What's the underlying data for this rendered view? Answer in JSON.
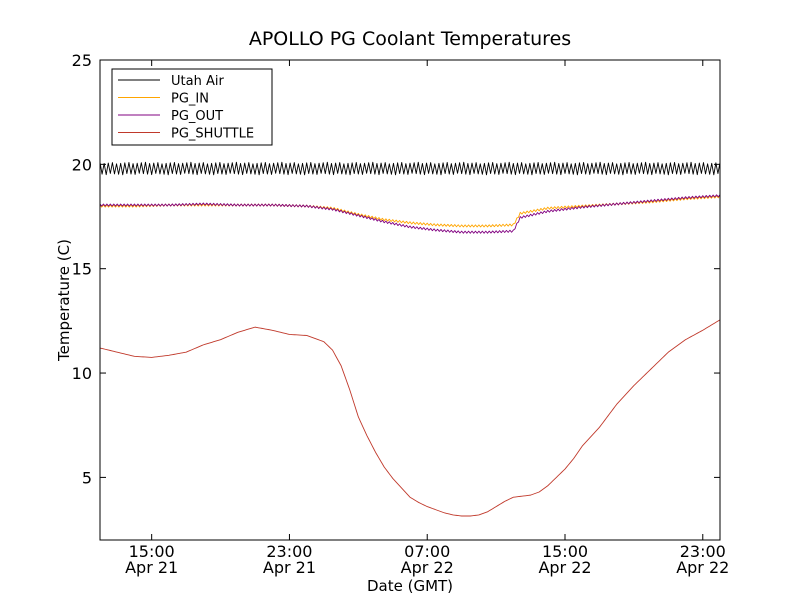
{
  "chart_data": {
    "type": "line",
    "title": "APOLLO PG Coolant Temperatures",
    "xlabel": "Date (GMT)",
    "ylabel": "Temperature (C)",
    "xlim": [
      12.0,
      48.0
    ],
    "ylim": [
      2,
      25
    ],
    "x_unit": "hours since 2014-04-21 00:00 GMT",
    "x_ticks": [
      {
        "x": 15,
        "line1": "15:00",
        "line2": "Apr 21"
      },
      {
        "x": 23,
        "line1": "23:00",
        "line2": "Apr 21"
      },
      {
        "x": 31,
        "line1": "07:00",
        "line2": "Apr 22"
      },
      {
        "x": 39,
        "line1": "15:00",
        "line2": "Apr 22"
      },
      {
        "x": 47,
        "line1": "23:00",
        "line2": "Apr 22"
      }
    ],
    "y_ticks": [
      5,
      10,
      15,
      20,
      25
    ],
    "legend_position": "top-left",
    "series": [
      {
        "name": "Utah Air",
        "color": "#000000",
        "oscillation": "high-frequency oscillation between approx. 19.5 and 20.1",
        "x": [
          12,
          48
        ],
        "low": [
          19.5,
          19.5
        ],
        "high": [
          20.1,
          20.1
        ]
      },
      {
        "name": "PG_IN",
        "color": "#ffa500",
        "x": [
          12,
          14,
          16,
          18,
          20,
          22,
          24,
          25.5,
          27,
          28.5,
          30,
          31.5,
          33,
          34.5,
          36,
          36.4,
          38,
          40,
          42,
          44,
          46,
          48
        ],
        "y": [
          18.0,
          18.0,
          18.05,
          18.05,
          18.05,
          18.05,
          18.0,
          17.9,
          17.6,
          17.35,
          17.2,
          17.1,
          17.05,
          17.05,
          17.1,
          17.65,
          17.9,
          18.0,
          18.1,
          18.2,
          18.35,
          18.45
        ]
      },
      {
        "name": "PG_OUT",
        "color": "#800080",
        "x": [
          12,
          14,
          16,
          18,
          20,
          22,
          24,
          25.5,
          27,
          28.5,
          30,
          31.5,
          33,
          34.5,
          36,
          36.4,
          38,
          40,
          42,
          44,
          46,
          48
        ],
        "y": [
          18.05,
          18.05,
          18.05,
          18.1,
          18.05,
          18.05,
          18.0,
          17.85,
          17.55,
          17.25,
          17.0,
          16.85,
          16.75,
          16.75,
          16.8,
          17.45,
          17.75,
          17.95,
          18.1,
          18.25,
          18.4,
          18.5
        ]
      },
      {
        "name": "PG_SHUTTLE",
        "color": "#c0392b",
        "x": [
          12,
          13,
          14,
          15,
          16,
          17,
          18,
          19,
          20,
          21,
          22,
          23,
          24,
          24.5,
          25,
          25.5,
          26,
          26.5,
          27,
          27.5,
          28,
          28.5,
          29,
          29.5,
          30,
          30.5,
          31,
          31.5,
          32,
          32.5,
          33,
          33.5,
          34,
          34.5,
          35,
          35.5,
          36,
          36.5,
          37,
          37.5,
          38,
          38.5,
          39,
          39.5,
          40,
          41,
          42,
          43,
          44,
          45,
          46,
          47,
          48
        ],
        "y": [
          11.2,
          11.0,
          10.8,
          10.75,
          10.85,
          11.0,
          11.35,
          11.6,
          11.95,
          12.2,
          12.05,
          11.85,
          11.8,
          11.65,
          11.5,
          11.1,
          10.35,
          9.2,
          7.9,
          7.0,
          6.2,
          5.5,
          4.95,
          4.5,
          4.05,
          3.8,
          3.6,
          3.45,
          3.3,
          3.2,
          3.15,
          3.15,
          3.2,
          3.35,
          3.6,
          3.85,
          4.05,
          4.1,
          4.15,
          4.3,
          4.6,
          5.0,
          5.4,
          5.9,
          6.5,
          7.4,
          8.5,
          9.4,
          10.2,
          11.0,
          11.6,
          12.05,
          12.55
        ]
      }
    ]
  }
}
